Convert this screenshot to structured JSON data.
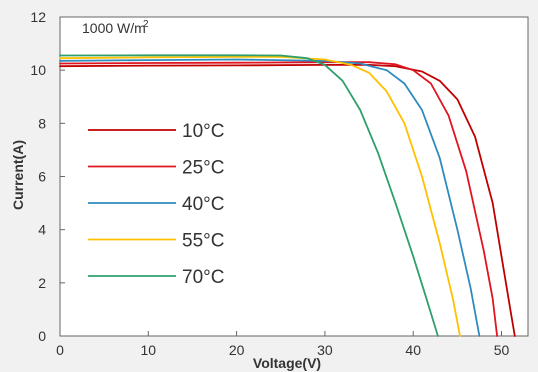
{
  "chart_data": {
    "type": "line",
    "annotation": {
      "text": "1000 W/m",
      "superscript": "2"
    },
    "xlabel": "Voltage(V)",
    "ylabel": "Current(A)",
    "xlim": [
      0,
      53
    ],
    "ylim": [
      0,
      12
    ],
    "x_ticks": [
      0,
      10,
      20,
      30,
      40,
      50
    ],
    "y_ticks": [
      0,
      2,
      4,
      6,
      8,
      10,
      12
    ],
    "grid": false,
    "legend_position": "left",
    "series": [
      {
        "name": "10°C",
        "color": "#c00000",
        "x": [
          0,
          10,
          20,
          30,
          35,
          38,
          41,
          43,
          45,
          47,
          49,
          50,
          51,
          51.5
        ],
        "y": [
          10.15,
          10.17,
          10.18,
          10.2,
          10.2,
          10.15,
          9.95,
          9.6,
          8.9,
          7.5,
          5.0,
          3.0,
          1.0,
          0
        ]
      },
      {
        "name": "25°C",
        "color": "#e0151f",
        "x": [
          0,
          10,
          20,
          30,
          35,
          38,
          40,
          42,
          44,
          46,
          48,
          49,
          49.5
        ],
        "y": [
          10.25,
          10.27,
          10.28,
          10.3,
          10.3,
          10.22,
          10.0,
          9.5,
          8.3,
          6.2,
          3.2,
          1.4,
          0
        ]
      },
      {
        "name": "40°C",
        "color": "#2e8bc0",
        "x": [
          0,
          10,
          20,
          30,
          34,
          37,
          39,
          41,
          43,
          45,
          46.5,
          47.5
        ],
        "y": [
          10.35,
          10.38,
          10.4,
          10.35,
          10.25,
          10.0,
          9.5,
          8.5,
          6.7,
          4.0,
          1.8,
          0
        ]
      },
      {
        "name": "55°C",
        "color": "#ffc000",
        "x": [
          0,
          10,
          20,
          25,
          30,
          33,
          35,
          37,
          39,
          41,
          43,
          44.5,
          45.3
        ],
        "y": [
          10.45,
          10.48,
          10.5,
          10.5,
          10.4,
          10.2,
          9.9,
          9.2,
          8.0,
          6.0,
          3.5,
          1.4,
          0
        ]
      },
      {
        "name": "70°C",
        "color": "#2f9f6d",
        "x": [
          0,
          10,
          20,
          25,
          28,
          30,
          32,
          34,
          36,
          38,
          40,
          41.5,
          42.8
        ],
        "y": [
          10.55,
          10.56,
          10.56,
          10.55,
          10.45,
          10.2,
          9.6,
          8.5,
          6.9,
          5.0,
          3.0,
          1.4,
          0
        ]
      }
    ]
  }
}
